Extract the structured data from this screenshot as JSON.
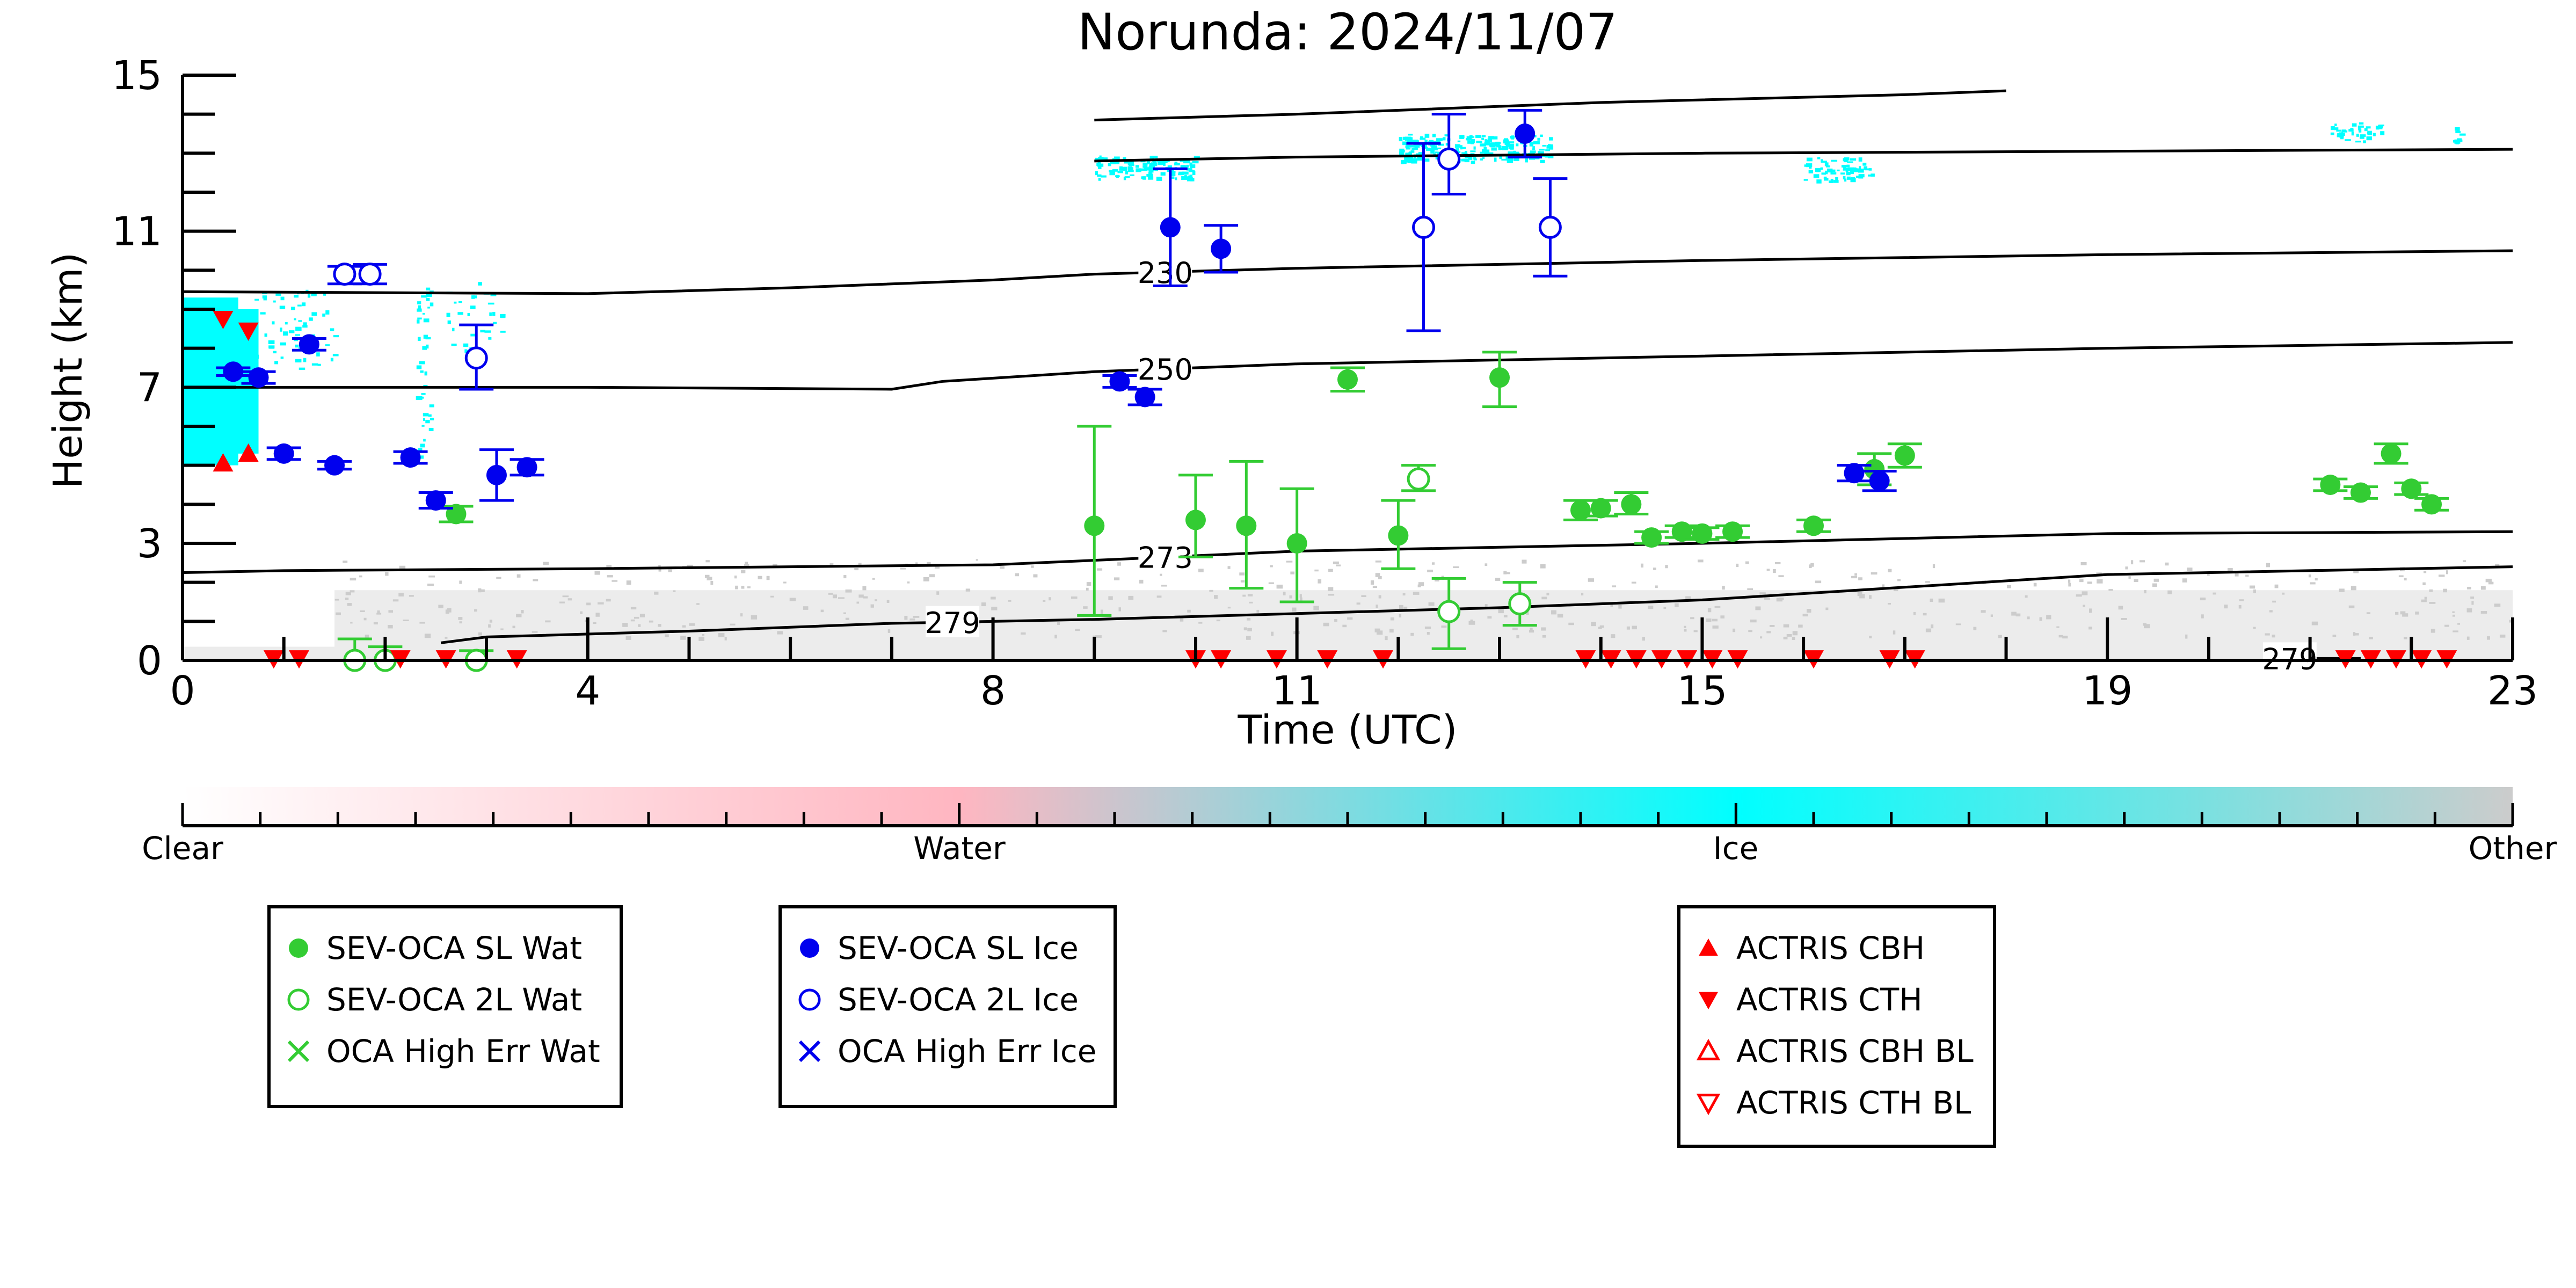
{
  "title": "Norunda: 2024/11/07",
  "colors": {
    "water": "#33cc33",
    "ice": "#0000ee",
    "actris": "#ff0000",
    "ice_mask": "#00ffff",
    "other_mask": "#cccccc",
    "contour": "#000000"
  },
  "chart_data": {
    "type": "scatter",
    "title": "Norunda: 2024/11/07",
    "xlabel": "Time (UTC)",
    "ylabel": "Height (km)",
    "xlim": [
      0,
      23
    ],
    "ylim": [
      0,
      15
    ],
    "x_ticks": [
      0,
      4,
      8,
      11,
      15,
      19,
      23
    ],
    "y_ticks": [
      0,
      3,
      7,
      11,
      15
    ],
    "series": [
      {
        "name": "SEV-OCA SL Wat",
        "marker": "filled-circle",
        "color": "#33cc33",
        "points": [
          {
            "x": 2.7,
            "y": 3.75,
            "lo": 3.55,
            "hi": 3.95
          },
          {
            "x": 9.0,
            "y": 3.45,
            "lo": 1.15,
            "hi": 6.0
          },
          {
            "x": 10.0,
            "y": 3.6,
            "lo": 2.65,
            "hi": 4.75
          },
          {
            "x": 10.5,
            "y": 3.45,
            "lo": 1.85,
            "hi": 5.1
          },
          {
            "x": 11.0,
            "y": 3.0,
            "lo": 1.5,
            "hi": 4.4
          },
          {
            "x": 11.5,
            "y": 7.2,
            "lo": 6.9,
            "hi": 7.5
          },
          {
            "x": 12.0,
            "y": 3.2,
            "lo": 2.35,
            "hi": 4.1
          },
          {
            "x": 13.0,
            "y": 7.25,
            "lo": 6.5,
            "hi": 7.9
          },
          {
            "x": 13.8,
            "y": 3.85,
            "lo": 3.6,
            "hi": 4.1
          },
          {
            "x": 14.0,
            "y": 3.9,
            "lo": 3.7,
            "hi": 4.1
          },
          {
            "x": 14.3,
            "y": 4.0,
            "lo": 3.75,
            "hi": 4.3
          },
          {
            "x": 14.5,
            "y": 3.15,
            "lo": 3.0,
            "hi": 3.3
          },
          {
            "x": 14.8,
            "y": 3.3,
            "lo": 3.15,
            "hi": 3.45
          },
          {
            "x": 15.0,
            "y": 3.25,
            "lo": 3.1,
            "hi": 3.4
          },
          {
            "x": 15.3,
            "y": 3.3,
            "lo": 3.15,
            "hi": 3.45
          },
          {
            "x": 16.1,
            "y": 3.45,
            "lo": 3.3,
            "hi": 3.6
          },
          {
            "x": 16.7,
            "y": 4.9,
            "lo": 4.5,
            "hi": 5.3
          },
          {
            "x": 17.0,
            "y": 5.25,
            "lo": 4.95,
            "hi": 5.55
          },
          {
            "x": 21.2,
            "y": 4.5,
            "lo": 4.35,
            "hi": 4.65
          },
          {
            "x": 21.5,
            "y": 4.3,
            "lo": 4.15,
            "hi": 4.45
          },
          {
            "x": 21.8,
            "y": 5.3,
            "lo": 5.05,
            "hi": 5.55
          },
          {
            "x": 22.0,
            "y": 4.4,
            "lo": 4.25,
            "hi": 4.55
          },
          {
            "x": 22.2,
            "y": 4.0,
            "lo": 3.85,
            "hi": 4.15
          }
        ]
      },
      {
        "name": "SEV-OCA 2L Wat",
        "marker": "open-circle",
        "color": "#33cc33",
        "points": [
          {
            "x": 1.7,
            "y": 0.0,
            "lo": 0.0,
            "hi": 0.55
          },
          {
            "x": 2.0,
            "y": 0.0,
            "lo": 0.0,
            "hi": 0.35
          },
          {
            "x": 2.9,
            "y": 0.0,
            "lo": 0.0,
            "hi": 0.25
          },
          {
            "x": 12.2,
            "y": 4.65,
            "lo": 4.35,
            "hi": 5.0
          },
          {
            "x": 12.5,
            "y": 1.25,
            "lo": 0.3,
            "hi": 2.1
          },
          {
            "x": 13.2,
            "y": 1.45,
            "lo": 0.9,
            "hi": 2.0
          }
        ]
      },
      {
        "name": "SEV-OCA SL Ice",
        "marker": "filled-circle",
        "color": "#0000ee",
        "points": [
          {
            "x": 0.5,
            "y": 7.4,
            "lo": 7.3,
            "hi": 7.5
          },
          {
            "x": 0.75,
            "y": 7.25,
            "lo": 7.1,
            "hi": 7.4
          },
          {
            "x": 1.0,
            "y": 5.3,
            "lo": 5.15,
            "hi": 5.45
          },
          {
            "x": 1.25,
            "y": 8.1,
            "lo": 7.95,
            "hi": 8.25
          },
          {
            "x": 1.5,
            "y": 5.0,
            "lo": 4.9,
            "hi": 5.1
          },
          {
            "x": 2.25,
            "y": 5.2,
            "lo": 5.05,
            "hi": 5.35
          },
          {
            "x": 2.5,
            "y": 4.1,
            "lo": 3.9,
            "hi": 4.3
          },
          {
            "x": 3.1,
            "y": 4.75,
            "lo": 4.1,
            "hi": 5.4
          },
          {
            "x": 3.4,
            "y": 4.95,
            "lo": 4.75,
            "hi": 5.15
          },
          {
            "x": 9.25,
            "y": 7.15,
            "lo": 7.0,
            "hi": 7.3
          },
          {
            "x": 9.5,
            "y": 6.75,
            "lo": 6.55,
            "hi": 6.95
          },
          {
            "x": 9.75,
            "y": 11.1,
            "lo": 9.6,
            "hi": 12.6
          },
          {
            "x": 10.25,
            "y": 10.55,
            "lo": 9.95,
            "hi": 11.15
          },
          {
            "x": 13.25,
            "y": 13.5,
            "lo": 12.9,
            "hi": 14.1
          },
          {
            "x": 16.5,
            "y": 4.8,
            "lo": 4.6,
            "hi": 5.0
          },
          {
            "x": 16.75,
            "y": 4.6,
            "lo": 4.35,
            "hi": 4.85
          }
        ]
      },
      {
        "name": "SEV-OCA 2L Ice",
        "marker": "open-circle",
        "color": "#0000ee",
        "points": [
          {
            "x": 1.6,
            "y": 9.9,
            "lo": 9.65,
            "hi": 10.1
          },
          {
            "x": 1.85,
            "y": 9.9,
            "lo": 9.65,
            "hi": 10.15
          },
          {
            "x": 2.9,
            "y": 7.75,
            "lo": 6.95,
            "hi": 8.6
          },
          {
            "x": 12.25,
            "y": 11.1,
            "lo": 8.45,
            "hi": 13.25
          },
          {
            "x": 12.5,
            "y": 12.85,
            "lo": 11.95,
            "hi": 14.0
          },
          {
            "x": 13.5,
            "y": 11.1,
            "lo": 9.85,
            "hi": 12.35
          }
        ]
      },
      {
        "name": "OCA High Err Wat",
        "marker": "x",
        "color": "#33cc33",
        "points": []
      },
      {
        "name": "OCA High Err Ice",
        "marker": "x",
        "color": "#0000ee",
        "points": []
      },
      {
        "name": "ACTRIS CBH",
        "marker": "filled-triangle-up",
        "color": "#ff0000",
        "points": [
          {
            "x": 0.4,
            "y": 5.05
          },
          {
            "x": 0.65,
            "y": 5.3
          }
        ]
      },
      {
        "name": "ACTRIS CTH",
        "marker": "filled-triangle-down",
        "color": "#ff0000",
        "points": [
          {
            "x": 0.4,
            "y": 8.75
          },
          {
            "x": 0.65,
            "y": 8.45
          },
          {
            "x": 0.9,
            "y": 0.05
          },
          {
            "x": 1.15,
            "y": 0.05
          },
          {
            "x": 2.15,
            "y": 0.05
          },
          {
            "x": 2.6,
            "y": 0.05
          },
          {
            "x": 3.3,
            "y": 0.05
          },
          {
            "x": 10.0,
            "y": 0.05
          },
          {
            "x": 10.25,
            "y": 0.05
          },
          {
            "x": 10.8,
            "y": 0.05
          },
          {
            "x": 11.3,
            "y": 0.05
          },
          {
            "x": 11.85,
            "y": 0.05
          },
          {
            "x": 13.85,
            "y": 0.05
          },
          {
            "x": 14.1,
            "y": 0.05
          },
          {
            "x": 14.35,
            "y": 0.05
          },
          {
            "x": 14.6,
            "y": 0.05
          },
          {
            "x": 14.85,
            "y": 0.05
          },
          {
            "x": 15.1,
            "y": 0.05
          },
          {
            "x": 15.35,
            "y": 0.05
          },
          {
            "x": 16.1,
            "y": 0.05
          },
          {
            "x": 16.85,
            "y": 0.05
          },
          {
            "x": 17.1,
            "y": 0.05
          },
          {
            "x": 21.35,
            "y": 0.05
          },
          {
            "x": 21.6,
            "y": 0.05
          },
          {
            "x": 21.85,
            "y": 0.05
          },
          {
            "x": 22.1,
            "y": 0.05
          },
          {
            "x": 22.35,
            "y": 0.05
          }
        ]
      },
      {
        "name": "ACTRIS CBH BL",
        "marker": "open-triangle-up",
        "color": "#ff0000",
        "points": []
      },
      {
        "name": "ACTRIS CTH BL",
        "marker": "open-triangle-down",
        "color": "#ff0000",
        "points": []
      }
    ],
    "contours": [
      {
        "label": "230",
        "label_x": 9.7,
        "points": [
          [
            0,
            9.45
          ],
          [
            4,
            9.4
          ],
          [
            6,
            9.55
          ],
          [
            8,
            9.75
          ],
          [
            9,
            9.9
          ],
          [
            11,
            10.05
          ],
          [
            15,
            10.25
          ],
          [
            19,
            10.4
          ],
          [
            23,
            10.5
          ]
        ]
      },
      {
        "label": "250",
        "label_x": 9.7,
        "points": [
          [
            0,
            7.0
          ],
          [
            4,
            7.0
          ],
          [
            7.0,
            6.95
          ],
          [
            7.5,
            7.15
          ],
          [
            9,
            7.4
          ],
          [
            11,
            7.6
          ],
          [
            15,
            7.8
          ],
          [
            19,
            8.0
          ],
          [
            23,
            8.15
          ]
        ]
      },
      {
        "label": "273",
        "label_x": 9.7,
        "points": [
          [
            0,
            2.25
          ],
          [
            1,
            2.3
          ],
          [
            4,
            2.35
          ],
          [
            8,
            2.45
          ],
          [
            9.3,
            2.6
          ],
          [
            11,
            2.8
          ],
          [
            13,
            2.9
          ],
          [
            15,
            3.0
          ],
          [
            19,
            3.25
          ],
          [
            23,
            3.3
          ]
        ]
      },
      {
        "label": "279",
        "label_x": 7.6,
        "points": [
          [
            2.55,
            0.45
          ],
          [
            3.0,
            0.6
          ],
          [
            5,
            0.75
          ],
          [
            7,
            0.95
          ],
          [
            9,
            1.05
          ],
          [
            11,
            1.2
          ],
          [
            13,
            1.35
          ],
          [
            15,
            1.55
          ],
          [
            19,
            2.2
          ],
          [
            23,
            2.4
          ]
        ]
      },
      {
        "label": "279",
        "label_x": 20.8,
        "points": [
          [
            20.6,
            0.05
          ],
          [
            21.5,
            0.05
          ]
        ]
      },
      {
        "label": "",
        "label_x": 0,
        "points": [
          [
            9.0,
            13.85
          ],
          [
            11,
            14.0
          ],
          [
            14,
            14.3
          ],
          [
            17,
            14.5
          ],
          [
            18,
            14.6
          ]
        ]
      },
      {
        "label": "",
        "label_x": 0,
        "points": [
          [
            9.0,
            12.8
          ],
          [
            11,
            12.9
          ],
          [
            15,
            13.0
          ],
          [
            19,
            13.05
          ],
          [
            23,
            13.1
          ]
        ]
      }
    ],
    "colorbar": {
      "labels": [
        "Clear",
        "Water",
        "Ice",
        "Other"
      ],
      "colors": [
        "#ffffff",
        "#ffb6c1",
        "#00ffff",
        "#cccccc"
      ]
    },
    "grid": false
  },
  "legends": [
    {
      "items": [
        {
          "label": "SEV-OCA SL Wat",
          "marker": "filled-circle",
          "color": "#33cc33"
        },
        {
          "label": "SEV-OCA 2L Wat",
          "marker": "open-circle",
          "color": "#33cc33"
        },
        {
          "label": "OCA High Err Wat",
          "marker": "x",
          "color": "#33cc33"
        }
      ]
    },
    {
      "items": [
        {
          "label": "SEV-OCA SL Ice",
          "marker": "filled-circle",
          "color": "#0000ee"
        },
        {
          "label": "SEV-OCA 2L Ice",
          "marker": "open-circle",
          "color": "#0000ee"
        },
        {
          "label": "OCA High Err Ice",
          "marker": "x",
          "color": "#0000ee"
        }
      ]
    },
    {
      "items": [
        {
          "label": "ACTRIS CBH",
          "marker": "filled-triangle-up",
          "color": "#ff0000"
        },
        {
          "label": "ACTRIS CTH",
          "marker": "filled-triangle-down",
          "color": "#ff0000"
        },
        {
          "label": "ACTRIS CBH BL",
          "marker": "open-triangle-up",
          "color": "#ff0000"
        },
        {
          "label": "ACTRIS CTH BL",
          "marker": "open-triangle-down",
          "color": "#ff0000"
        }
      ]
    }
  ]
}
